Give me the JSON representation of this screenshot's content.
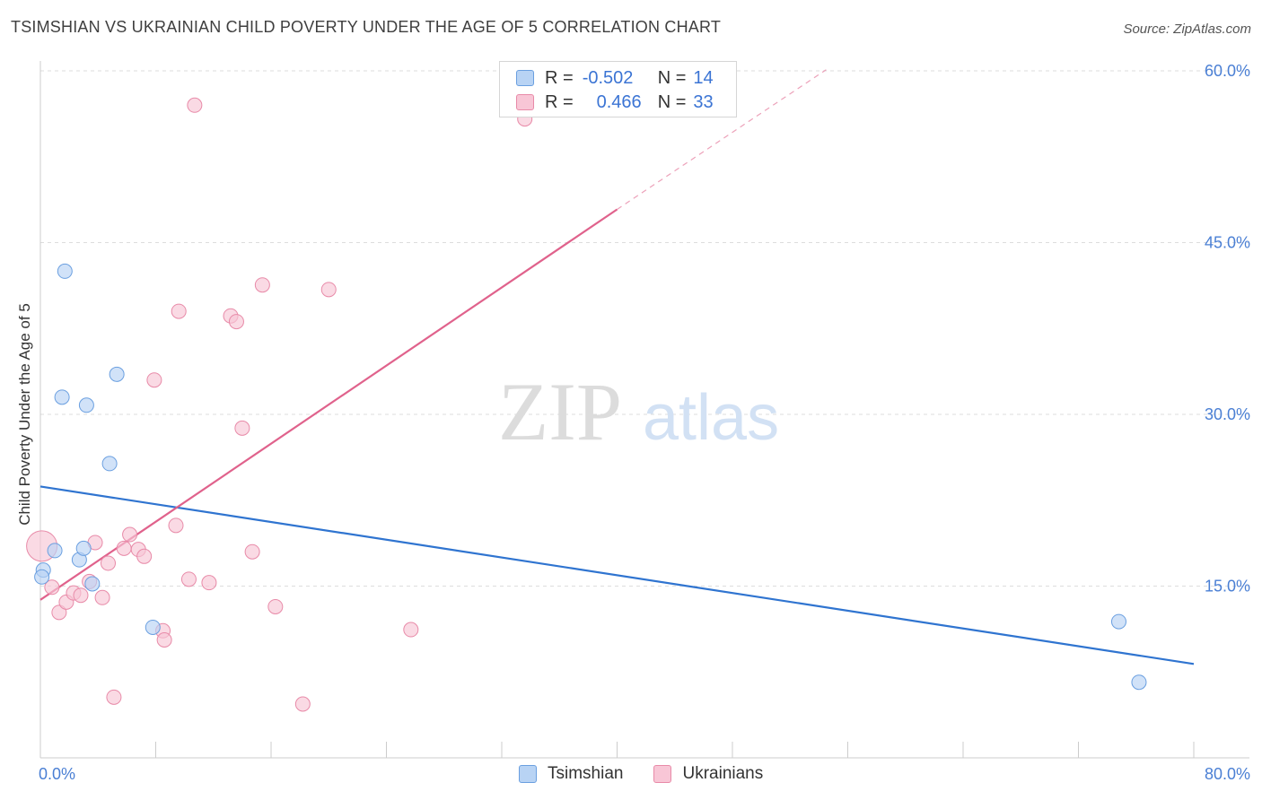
{
  "title": "TSIMSHIAN VS UKRAINIAN CHILD POVERTY UNDER THE AGE OF 5 CORRELATION CHART",
  "source": "Source: ZipAtlas.com",
  "watermark": {
    "zip": "ZIP",
    "atlas": "atlas"
  },
  "colors": {
    "tsimshian_fill": "#b8d3f4",
    "tsimshian_stroke": "#6a9fe0",
    "tsimshian_line": "#2f74d0",
    "ukrainian_fill": "#f8c6d6",
    "ukrainian_stroke": "#e88aa8",
    "ukrainian_line": "#e0628c",
    "tick_text": "#4a7fd4",
    "grid": "#dddddd"
  },
  "legend": {
    "rows": [
      {
        "r_label": "R =",
        "r_value": "-0.502",
        "n_label": "N =",
        "n_value": "14"
      },
      {
        "r_label": "R =",
        "r_value": "0.466",
        "n_label": "N =",
        "n_value": "33"
      }
    ]
  },
  "bottom_legend": [
    "Tsimshian",
    "Ukrainians"
  ],
  "chart_data": {
    "type": "scatter",
    "title": "TSIMSHIAN VS UKRAINIAN CHILD POVERTY UNDER THE AGE OF 5 CORRELATION CHART",
    "xlabel": "",
    "ylabel": "Child Poverty Under the Age of 5",
    "xlim": [
      0,
      80
    ],
    "ylim": [
      0,
      60
    ],
    "x_tick_labels": [
      "0.0%",
      "80.0%"
    ],
    "y_ticks": [
      15,
      30,
      45,
      60
    ],
    "y_tick_labels": [
      "15.0%",
      "30.0%",
      "45.0%",
      "60.0%"
    ],
    "grid": true,
    "legend_position": "top-center",
    "series": [
      {
        "name": "Tsimshian",
        "R": -0.502,
        "N": 14,
        "points": [
          [
            0.2,
            16.4
          ],
          [
            1.0,
            18.1
          ],
          [
            1.5,
            31.5
          ],
          [
            1.7,
            42.5
          ],
          [
            2.7,
            17.3
          ],
          [
            3.0,
            18.3
          ],
          [
            3.2,
            30.8
          ],
          [
            3.6,
            15.2
          ],
          [
            4.8,
            25.7
          ],
          [
            5.3,
            33.5
          ],
          [
            7.8,
            11.4
          ],
          [
            74.8,
            11.9
          ],
          [
            76.2,
            6.6
          ],
          [
            0.1,
            15.8
          ]
        ],
        "trend": {
          "x": [
            0,
            80
          ],
          "y": [
            23.7,
            8.2
          ],
          "dashed_to": null
        }
      },
      {
        "name": "Ukrainians",
        "R": 0.466,
        "N": 33,
        "points": [
          [
            0.1,
            18.5
          ],
          [
            0.8,
            14.9
          ],
          [
            1.3,
            12.7
          ],
          [
            1.8,
            13.6
          ],
          [
            2.3,
            14.4
          ],
          [
            2.8,
            14.2
          ],
          [
            3.4,
            15.4
          ],
          [
            3.8,
            18.8
          ],
          [
            4.3,
            14.0
          ],
          [
            4.7,
            17.0
          ],
          [
            5.1,
            5.3
          ],
          [
            5.8,
            18.3
          ],
          [
            6.2,
            19.5
          ],
          [
            6.8,
            18.2
          ],
          [
            7.2,
            17.6
          ],
          [
            7.9,
            33.0
          ],
          [
            8.5,
            11.1
          ],
          [
            8.6,
            10.3
          ],
          [
            9.4,
            20.3
          ],
          [
            9.6,
            39.0
          ],
          [
            10.3,
            15.6
          ],
          [
            10.7,
            57.0
          ],
          [
            11.7,
            15.3
          ],
          [
            13.2,
            38.6
          ],
          [
            13.6,
            38.1
          ],
          [
            14.0,
            28.8
          ],
          [
            14.7,
            18.0
          ],
          [
            15.4,
            41.3
          ],
          [
            16.3,
            13.2
          ],
          [
            18.2,
            4.7
          ],
          [
            20.0,
            40.9
          ],
          [
            25.7,
            11.2
          ],
          [
            33.6,
            55.8
          ]
        ],
        "trend": {
          "x": [
            0,
            40
          ],
          "y": [
            13.8,
            47.9
          ],
          "dashed_to": [
            54.5,
            60.1
          ]
        }
      }
    ]
  }
}
